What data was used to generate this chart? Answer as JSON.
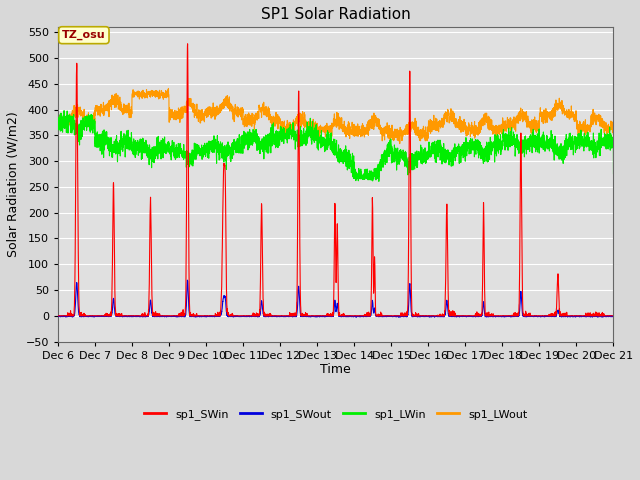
{
  "title": "SP1 Solar Radiation",
  "xlabel": "Time",
  "ylabel": "Solar Radiation (W/m2)",
  "ylim": [
    -50,
    560
  ],
  "yticks": [
    -50,
    0,
    50,
    100,
    150,
    200,
    250,
    300,
    350,
    400,
    450,
    500,
    550
  ],
  "background_color": "#e8e8e8",
  "plot_bg_color": "#e0e0e0",
  "grid_color": "#ffffff",
  "colors": {
    "SWin": "#ff0000",
    "SWout": "#0000dd",
    "LWin": "#00ee00",
    "LWout": "#ff9900"
  },
  "legend_labels": [
    "sp1_SWin",
    "sp1_SWout",
    "sp1_LWin",
    "sp1_LWout"
  ],
  "tz_label": "TZ_osu",
  "x_tick_labels": [
    "Dec 6",
    "Dec 7",
    "Dec 8",
    "Dec 9",
    "Dec 10",
    "Dec 11",
    "Dec 12",
    "Dec 13",
    "Dec 14",
    "Dec 15",
    "Dec 16",
    "Dec 17",
    "Dec 18",
    "Dec 19",
    "Dec 20",
    "Dec 21"
  ],
  "n_days": 15,
  "figsize": [
    6.4,
    4.8
  ],
  "dpi": 100
}
